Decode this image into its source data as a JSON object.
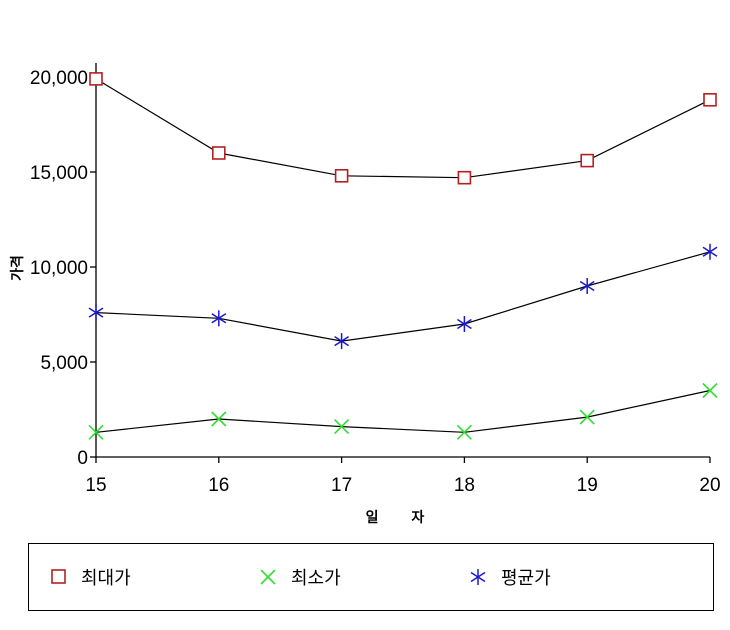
{
  "chart_data": {
    "type": "line",
    "title": "",
    "xlabel": "일 자",
    "ylabel": "가격",
    "x": [
      15,
      16,
      17,
      18,
      19,
      20
    ],
    "xlim": [
      15,
      20
    ],
    "ylim": [
      0,
      20000
    ],
    "yticks": [
      0,
      5000,
      10000,
      15000,
      20000
    ],
    "ytick_labels": [
      "0",
      "5,000",
      "10,000",
      "15,000",
      "20,000"
    ],
    "xtick_labels": [
      "15",
      "16",
      "17",
      "18",
      "19",
      "20"
    ],
    "grid": false,
    "legend_position": "bottom",
    "series": [
      {
        "name": "최대가",
        "marker": "square",
        "color": "#b22222",
        "values": [
          19900,
          16000,
          14800,
          14700,
          15600,
          18800
        ]
      },
      {
        "name": "최소가",
        "marker": "x",
        "color": "#33dd33",
        "values": [
          1300,
          2000,
          1600,
          1300,
          2100,
          3500
        ]
      },
      {
        "name": "평균가",
        "marker": "asterisk",
        "color": "#1a1acc",
        "values": [
          7600,
          7300,
          6100,
          7000,
          9000,
          10800
        ]
      }
    ]
  }
}
